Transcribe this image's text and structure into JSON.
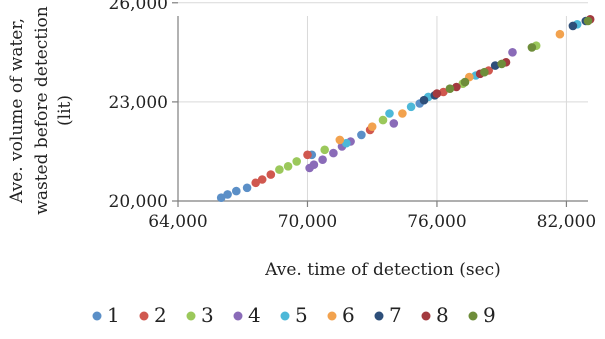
{
  "chart_data": {
    "type": "scatter",
    "xlabel": "Ave. time of detection (sec)",
    "ylabel_lines": [
      "Ave. volume of water,",
      "wasted before detection",
      "(lit)"
    ],
    "xlim": [
      64000,
      83000
    ],
    "ylim": [
      20000,
      25600
    ],
    "x_ticks": [
      64000,
      70000,
      76000,
      82000
    ],
    "x_tick_labels": [
      "64,000",
      "70,000",
      "76,000",
      "82,000"
    ],
    "y_ticks": [
      20000,
      23000,
      26000
    ],
    "y_tick_labels": [
      "20,000",
      "23,000",
      "26,000"
    ],
    "grid": true,
    "legend_position": "bottom",
    "series": [
      {
        "name": "1",
        "color": "#5b8fc7",
        "points": [
          [
            66000,
            20100
          ],
          [
            66300,
            20200
          ],
          [
            66700,
            20300
          ],
          [
            67200,
            20400
          ],
          [
            70200,
            21400
          ],
          [
            72500,
            22000
          ],
          [
            75200,
            22950
          ]
        ]
      },
      {
        "name": "2",
        "color": "#d0584f",
        "points": [
          [
            67600,
            20550
          ],
          [
            67900,
            20650
          ],
          [
            68300,
            20800
          ],
          [
            70000,
            21400
          ],
          [
            72900,
            22150
          ],
          [
            76300,
            23300
          ],
          [
            78400,
            23950
          ]
        ]
      },
      {
        "name": "3",
        "color": "#9bc85b",
        "points": [
          [
            68700,
            20950
          ],
          [
            69100,
            21050
          ],
          [
            69500,
            21200
          ],
          [
            70800,
            21550
          ],
          [
            73500,
            22450
          ],
          [
            77200,
            23550
          ],
          [
            80600,
            24700
          ]
        ]
      },
      {
        "name": "4",
        "color": "#8a6bb8",
        "points": [
          [
            70100,
            21000
          ],
          [
            70300,
            21100
          ],
          [
            70700,
            21250
          ],
          [
            71200,
            21450
          ],
          [
            71600,
            21650
          ],
          [
            72000,
            21800
          ],
          [
            74000,
            22350
          ],
          [
            79500,
            24500
          ]
        ]
      },
      {
        "name": "5",
        "color": "#4db8d8",
        "points": [
          [
            71800,
            21750
          ],
          [
            73800,
            22650
          ],
          [
            74800,
            22850
          ],
          [
            75600,
            23150
          ],
          [
            77800,
            23800
          ],
          [
            82500,
            25350
          ]
        ]
      },
      {
        "name": "6",
        "color": "#f2a24e",
        "points": [
          [
            71500,
            21850
          ],
          [
            73000,
            22250
          ],
          [
            74400,
            22650
          ],
          [
            77500,
            23750
          ],
          [
            81700,
            25050
          ]
        ]
      },
      {
        "name": "7",
        "color": "#2e4f7a",
        "points": [
          [
            75400,
            23050
          ],
          [
            75900,
            23200
          ],
          [
            78700,
            24100
          ],
          [
            82300,
            25300
          ],
          [
            82900,
            25450
          ]
        ]
      },
      {
        "name": "8",
        "color": "#a33a3f",
        "points": [
          [
            76000,
            23250
          ],
          [
            76900,
            23450
          ],
          [
            78000,
            23850
          ],
          [
            79200,
            24200
          ],
          [
            83100,
            25500
          ]
        ]
      },
      {
        "name": "9",
        "color": "#6e8d3a",
        "points": [
          [
            76600,
            23400
          ],
          [
            77300,
            23600
          ],
          [
            78200,
            23900
          ],
          [
            79000,
            24150
          ],
          [
            80400,
            24650
          ],
          [
            83000,
            25450
          ]
        ]
      }
    ]
  }
}
